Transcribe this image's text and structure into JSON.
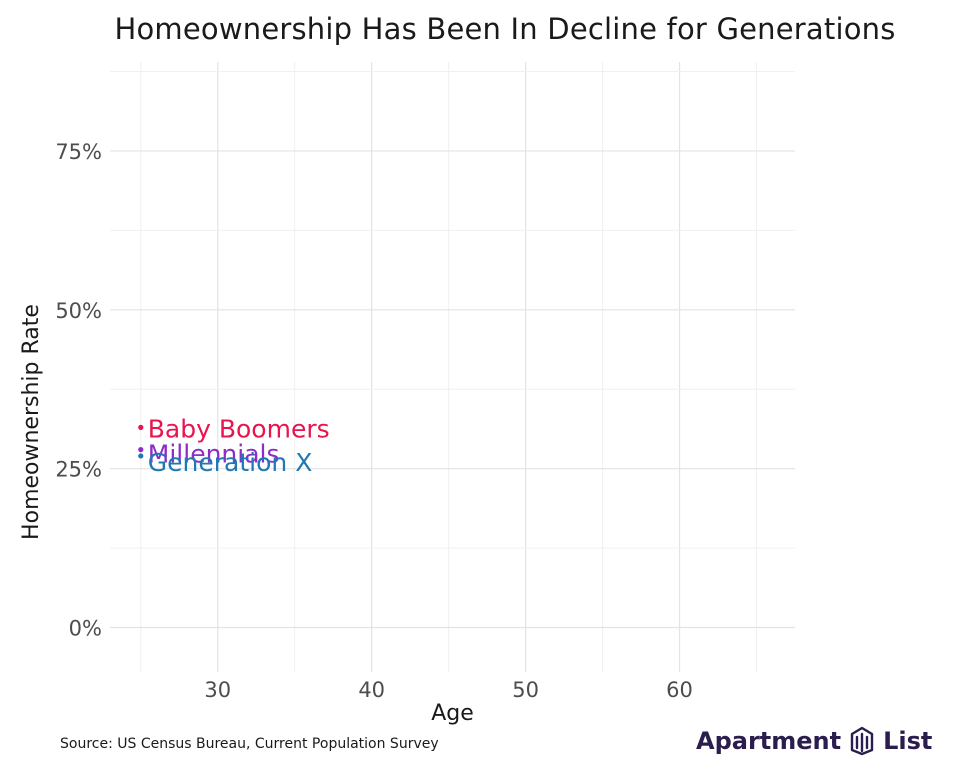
{
  "chart_data": {
    "type": "line",
    "title": "Homeownership Has Been In Decline for Generations",
    "xlabel": "Age",
    "ylabel": "Homeownership Rate",
    "xlim": [
      23,
      67.5
    ],
    "ylim": [
      -0.07,
      0.89
    ],
    "x_ticks": [
      30,
      40,
      50,
      60
    ],
    "x_tick_labels": [
      "30",
      "40",
      "50",
      "60"
    ],
    "y_ticks": [
      0,
      0.25,
      0.5,
      0.75
    ],
    "y_tick_labels": [
      "0%",
      "25%",
      "50%",
      "75%"
    ],
    "grid": true,
    "legend": "none",
    "series": [
      {
        "name": "Baby Boomers",
        "color": "#e8134f",
        "points": [
          {
            "x": 25,
            "y": 0.315
          }
        ]
      },
      {
        "name": "Millennials",
        "color": "#8d2dc9",
        "points": [
          {
            "x": 25,
            "y": 0.28
          }
        ]
      },
      {
        "name": "Generation X",
        "color": "#1f78b4",
        "points": [
          {
            "x": 25,
            "y": 0.27
          }
        ]
      }
    ]
  },
  "source": "Source: US Census Bureau, Current Population Survey",
  "brand": {
    "left": "Apartment",
    "right": "List",
    "logo_icon": "apartment-list-logo-icon"
  }
}
